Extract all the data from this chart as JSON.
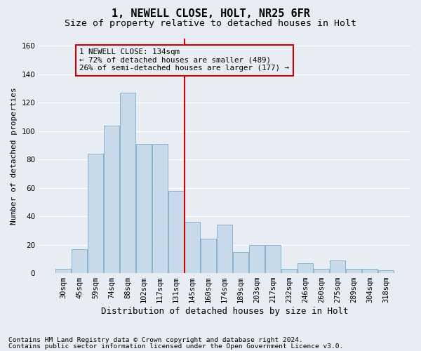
{
  "title1": "1, NEWELL CLOSE, HOLT, NR25 6FR",
  "title2": "Size of property relative to detached houses in Holt",
  "xlabel": "Distribution of detached houses by size in Holt",
  "ylabel": "Number of detached properties",
  "footnote1": "Contains HM Land Registry data © Crown copyright and database right 2024.",
  "footnote2": "Contains public sector information licensed under the Open Government Licence v3.0.",
  "annotation_line1": "1 NEWELL CLOSE: 134sqm",
  "annotation_line2": "← 72% of detached houses are smaller (489)",
  "annotation_line3": "26% of semi-detached houses are larger (177) →",
  "categories": [
    "30sqm",
    "45sqm",
    "59sqm",
    "74sqm",
    "88sqm",
    "102sqm",
    "117sqm",
    "131sqm",
    "145sqm",
    "160sqm",
    "174sqm",
    "189sqm",
    "203sqm",
    "217sqm",
    "232sqm",
    "246sqm",
    "260sqm",
    "275sqm",
    "289sqm",
    "304sqm",
    "318sqm"
  ],
  "values": [
    3,
    17,
    84,
    104,
    127,
    91,
    91,
    58,
    36,
    24,
    34,
    15,
    20,
    20,
    3,
    7,
    3,
    9,
    3,
    3,
    2
  ],
  "bar_color": "#c8d9ea",
  "bar_edge_color": "#7aaac8",
  "vline_color": "#cc0000",
  "annotation_box_color": "#cc0000",
  "background_color": "#e8edf4",
  "ylim": [
    0,
    165
  ],
  "yticks": [
    0,
    20,
    40,
    60,
    80,
    100,
    120,
    140,
    160
  ],
  "grid_color": "#ffffff",
  "title1_fontsize": 11,
  "title2_fontsize": 9.5,
  "xlabel_fontsize": 9,
  "ylabel_fontsize": 8,
  "tick_fontsize": 7.5,
  "annotation_fontsize": 7.8,
  "footnote_fontsize": 6.8
}
